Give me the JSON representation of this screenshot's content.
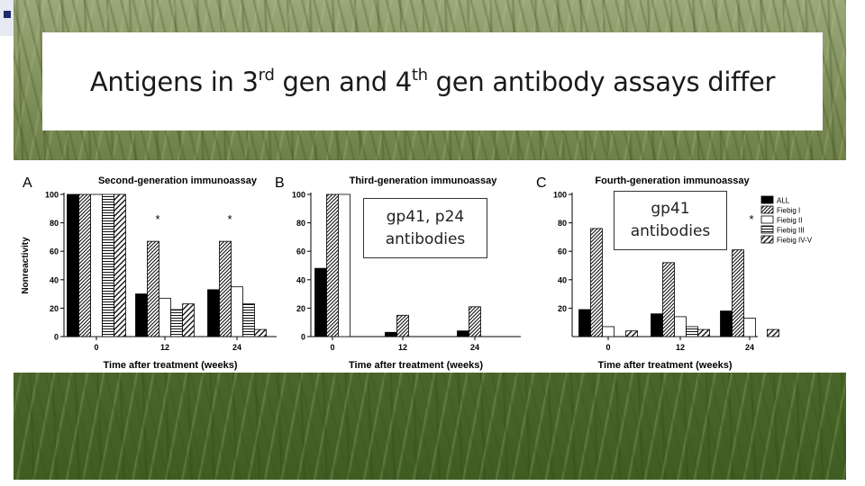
{
  "slide": {
    "title_parts": [
      "Antigens in 3",
      "rd",
      " gen and 4",
      "th",
      " gen antibody assays differ"
    ]
  },
  "callouts": {
    "third_gen": [
      "gp41, p24",
      "antibodies"
    ],
    "fourth_gen": [
      "gp41",
      "antibodies"
    ]
  },
  "chart_data": [
    {
      "type": "bar",
      "panel": "A",
      "title": "Second-generation immunoassay",
      "xlabel": "Time after treatment (weeks)",
      "ylabel": "Nonreactivity",
      "ylim": [
        0,
        100
      ],
      "yticks": [
        0,
        20,
        40,
        60,
        80,
        100
      ],
      "categories": [
        "0",
        "12",
        "24"
      ],
      "series": [
        {
          "name": "ALL",
          "values": [
            100,
            30,
            33
          ]
        },
        {
          "name": "Fiebig I",
          "values": [
            100,
            67,
            67
          ]
        },
        {
          "name": "Fiebig II",
          "values": [
            100,
            27,
            35
          ]
        },
        {
          "name": "Fiebig III",
          "values": [
            100,
            19,
            23
          ]
        },
        {
          "name": "Fiebig IV-V",
          "values": [
            100,
            23,
            5
          ]
        }
      ],
      "annotations": [
        {
          "category": "12",
          "text": "*"
        },
        {
          "category": "24",
          "text": "*"
        }
      ]
    },
    {
      "type": "bar",
      "panel": "B",
      "title": "Third-generation immunoassay",
      "xlabel": "Time after treatment (weeks)",
      "ylim": [
        0,
        100
      ],
      "yticks": [
        0,
        20,
        40,
        60,
        80,
        100
      ],
      "categories": [
        "0",
        "12",
        "24"
      ],
      "series": [
        {
          "name": "ALL",
          "values": [
            48,
            3,
            4
          ]
        },
        {
          "name": "Fiebig I",
          "values": [
            100,
            15,
            21
          ]
        },
        {
          "name": "Fiebig II",
          "values": [
            100,
            0,
            0
          ]
        }
      ]
    },
    {
      "type": "bar",
      "panel": "C",
      "title": "Fourth-generation immunoassay",
      "xlabel": "Time after treatment (weeks)",
      "ylim": [
        0,
        100
      ],
      "yticks": [
        20,
        40,
        60,
        80,
        100
      ],
      "categories": [
        "0",
        "12",
        "24"
      ],
      "series": [
        {
          "name": "ALL",
          "values": [
            19,
            16,
            18
          ]
        },
        {
          "name": "Fiebig I",
          "values": [
            76,
            52,
            61
          ]
        },
        {
          "name": "Fiebig II",
          "values": [
            7,
            14,
            13
          ]
        },
        {
          "name": "Fiebig III",
          "values": [
            0,
            7,
            0
          ]
        },
        {
          "name": "Fiebig IV-V",
          "values": [
            4,
            5,
            5
          ]
        }
      ],
      "legend": [
        "ALL",
        "Fiebig I",
        "Fiebig II",
        "Fiebig III",
        "Fiebig IV-V"
      ],
      "legend_position": "top-right",
      "annotations": [
        {
          "category": "24",
          "text": "*"
        }
      ]
    }
  ]
}
